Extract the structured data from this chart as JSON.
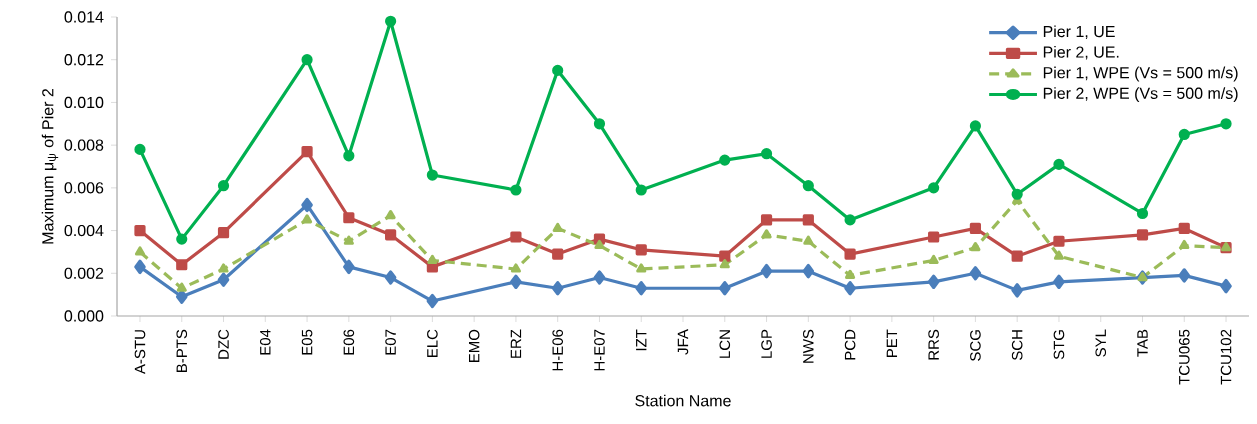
{
  "chart_data": {
    "type": "line",
    "xlabel": "Station Name",
    "ylabel": "Maximum  μ$_{ψ}$ of Pier 2",
    "categories": [
      "A-STU",
      "B-PTS",
      "DZC",
      "E04",
      "E05",
      "E06",
      "E07",
      "ELC",
      "EMO",
      "ERZ",
      "H-E06",
      "H-E07",
      "IZT",
      "JFA",
      "LCN",
      "LGP",
      "NWS",
      "PCD",
      "PET",
      "RRS",
      "SCG",
      "SCH",
      "STG",
      "SYL",
      "TAB",
      "TCU065",
      "TCU102"
    ],
    "ylim": [
      0,
      0.014
    ],
    "yticks": [
      {
        "value": 0,
        "label": "0.000"
      },
      {
        "value": 0.002,
        "label": "0.002"
      },
      {
        "value": 0.004,
        "label": "0.004"
      },
      {
        "value": 0.006,
        "label": "0.006"
      },
      {
        "value": 0.008,
        "label": "0.008"
      },
      {
        "value": 0.01,
        "label": "0.010"
      },
      {
        "value": 0.012,
        "label": "0.012"
      },
      {
        "value": 0.014,
        "label": "0.014"
      }
    ],
    "legend": "top right",
    "series": [
      {
        "name": "Pier 1, UE",
        "color": "#4a7ebb",
        "marker": "diamond",
        "line_style": "solid",
        "values": [
          0.0023,
          0.0009,
          0.0017,
          null,
          0.0052,
          0.0023,
          0.0018,
          0.0007,
          null,
          0.0016,
          0.0013,
          0.0018,
          0.0013,
          null,
          0.0013,
          0.0021,
          0.0021,
          0.0013,
          null,
          0.0016,
          0.002,
          0.0012,
          0.0016,
          null,
          0.0018,
          0.0019,
          0.0014
        ]
      },
      {
        "name": "Pier 2, UE.",
        "color": "#be4b48",
        "marker": "square",
        "line_style": "solid",
        "values": [
          0.004,
          0.0024,
          0.0039,
          null,
          0.0077,
          0.0046,
          0.0038,
          0.0023,
          null,
          0.0037,
          0.0029,
          0.0036,
          0.0031,
          null,
          0.0028,
          0.0045,
          0.0045,
          0.0029,
          null,
          0.0037,
          0.0041,
          0.0028,
          0.0035,
          null,
          0.0038,
          0.0041,
          0.0032
        ]
      },
      {
        "name": "Pier 1, WPE (Vs = 500 m/s)",
        "color": "#9bbb59",
        "marker": "triangle",
        "line_style": "dashed",
        "values": [
          0.003,
          0.0013,
          0.0022,
          null,
          0.0045,
          0.0035,
          0.0047,
          0.0026,
          null,
          0.0022,
          0.0041,
          0.0033,
          0.0022,
          null,
          0.0024,
          0.0038,
          0.0035,
          0.0019,
          null,
          0.0026,
          0.0032,
          0.0054,
          0.0028,
          null,
          0.0018,
          0.0033,
          0.0032
        ]
      },
      {
        "name": "Pier 2, WPE (Vs = 500 m/s)",
        "color": "#00b050",
        "marker": "circle",
        "line_style": "solid",
        "values": [
          0.0078,
          0.0036,
          0.0061,
          null,
          0.012,
          0.0075,
          0.0138,
          0.0066,
          null,
          0.0059,
          0.0115,
          0.009,
          0.0059,
          null,
          0.0073,
          0.0076,
          0.0061,
          0.0045,
          null,
          0.006,
          0.0089,
          0.0057,
          0.0071,
          null,
          0.0048,
          0.0085,
          0.009
        ]
      }
    ]
  }
}
